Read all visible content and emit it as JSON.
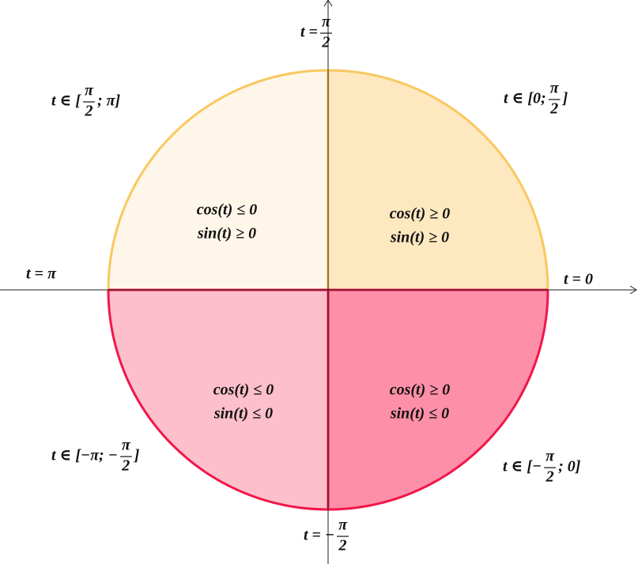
{
  "labels": [
    {
      "before": "t =",
      "num": "π",
      "den": "2"
    },
    {
      "before": "t = 0"
    },
    {
      "before": "t = π"
    },
    {
      "before": "t = −",
      "num": "π",
      "den": "2"
    },
    {
      "before": "t ∈ [0;",
      "num": "π",
      "den": "2",
      "after": "]"
    },
    {
      "before": "t ∈ [",
      "num": "π",
      "den": "2",
      "after": "; π]"
    },
    {
      "before": "t ∈ [−π; −",
      "num": "π",
      "den": "2",
      "after": "]"
    },
    {
      "before": "t ∈ [−",
      "num": "π",
      "den": "2",
      "after": "; 0]"
    }
  ],
  "quadrants": [
    {
      "lines": [
        "cos(t) ≥ 0",
        "sin(t) ≥ 0"
      ]
    },
    {
      "lines": [
        "cos(t) ≤ 0",
        "sin(t) ≥ 0"
      ]
    },
    {
      "lines": [
        "cos(t) ≤ 0",
        "sin(t) ≤ 0"
      ]
    },
    {
      "lines": [
        "cos(t) ≥ 0",
        "sin(t) ≤ 0"
      ]
    }
  ]
}
